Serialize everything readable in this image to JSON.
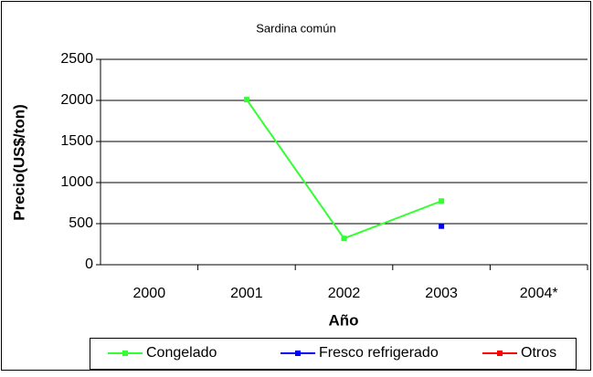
{
  "chart_data": {
    "type": "line",
    "title": "Sardina común",
    "x_label": "Año",
    "y_label": "Precio(US$/ton)",
    "categories": [
      "2000",
      "2001",
      "2002",
      "2003",
      "2004*"
    ],
    "series": [
      {
        "name": "Congelado",
        "color": "#33ff33",
        "values": [
          null,
          2010,
          320,
          775,
          null
        ]
      },
      {
        "name": "Fresco refrigerado",
        "color": "#0000ff",
        "values": [
          null,
          null,
          null,
          470,
          null
        ]
      },
      {
        "name": "Otros",
        "color": "#ff0000",
        "values": [
          null,
          null,
          null,
          null,
          null
        ]
      }
    ],
    "ylim": [
      0,
      2500
    ],
    "yticks": [
      0,
      500,
      1000,
      1500,
      2000,
      2500
    ],
    "grid": true,
    "legend": "bottom"
  }
}
